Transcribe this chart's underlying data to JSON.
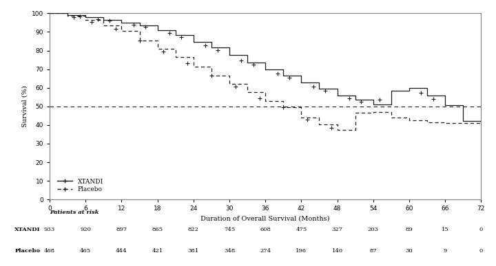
{
  "title": "",
  "xlabel": "Duration of Overall Survival (Months)",
  "ylabel": "Survival (%)",
  "xlim": [
    0,
    72
  ],
  "ylim": [
    0,
    100
  ],
  "xticks": [
    0,
    6,
    12,
    18,
    24,
    30,
    36,
    42,
    48,
    54,
    60,
    66,
    72
  ],
  "yticks": [
    0,
    10,
    20,
    30,
    40,
    50,
    60,
    70,
    80,
    90,
    100
  ],
  "median_line_y": 50,
  "background_color": "#ffffff",
  "line_color": "#1a1a1a",
  "xtandi_label": "XTANDI",
  "placebo_label": "Placebo",
  "patients_at_risk_label": "Patients at risk",
  "xtandi_at_risk": [
    933,
    920,
    897,
    865,
    822,
    745,
    608,
    475,
    327,
    203,
    89,
    15,
    0
  ],
  "placebo_at_risk": [
    468,
    465,
    444,
    421,
    381,
    348,
    274,
    196,
    140,
    87,
    30,
    9,
    0
  ],
  "risk_months": [
    0,
    6,
    12,
    18,
    24,
    30,
    36,
    42,
    48,
    54,
    60,
    66,
    72
  ],
  "xtandi_t": [
    0,
    3,
    6,
    9,
    12,
    15,
    18,
    21,
    24,
    27,
    30,
    33,
    36,
    39,
    42,
    45,
    48,
    51,
    54,
    57,
    60,
    63,
    66,
    69,
    72
  ],
  "xtandi_s": [
    100,
    99.2,
    97.8,
    96.5,
    95.0,
    93.5,
    91.0,
    88.5,
    84.8,
    81.5,
    77.5,
    73.5,
    70.0,
    66.5,
    63.0,
    59.5,
    56.0,
    53.5,
    51.0,
    58.5,
    60.0,
    56.0,
    50.5,
    42.0,
    41.0
  ],
  "placebo_t": [
    0,
    3,
    6,
    9,
    12,
    15,
    18,
    21,
    24,
    27,
    30,
    33,
    36,
    39,
    42,
    45,
    48,
    51,
    54,
    57,
    60,
    63,
    66,
    69,
    72
  ],
  "placebo_s": [
    100,
    98.5,
    96.5,
    93.5,
    90.5,
    85.5,
    81.0,
    76.5,
    71.5,
    66.5,
    62.0,
    57.5,
    53.0,
    49.5,
    44.0,
    40.5,
    37.5,
    46.5,
    47.0,
    44.0,
    42.5,
    41.5,
    41.0,
    41.0,
    41.0
  ],
  "censor_xtandi_t": [
    5,
    8,
    10,
    14,
    16,
    20,
    22,
    26,
    28,
    32,
    34,
    38,
    40,
    44,
    46,
    50,
    52,
    55,
    62,
    64
  ],
  "censor_placebo_t": [
    4,
    7,
    11,
    15,
    19,
    23,
    27,
    31,
    35,
    39,
    43,
    47
  ]
}
